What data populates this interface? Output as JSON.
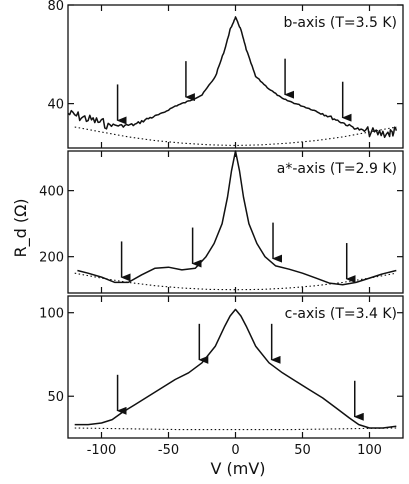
{
  "figure": {
    "ylabel": "R_d (Ω)",
    "xlabel": "V (mV)"
  },
  "chart_data": [
    {
      "type": "line",
      "annotation": "b-axis (T=3.5 K)",
      "xlim": [
        -125,
        125
      ],
      "ylim": [
        22,
        80
      ],
      "yticks": [
        40,
        80
      ],
      "noisy_edges": true,
      "series": [
        {
          "style": "solid",
          "x": [
            -125,
            -115,
            -105,
            -95,
            -85,
            -75,
            -65,
            -55,
            -45,
            -35,
            -25,
            -15,
            -8,
            -4,
            0,
            4,
            8,
            15,
            25,
            35,
            45,
            55,
            65,
            75,
            85,
            95,
            105,
            115,
            120
          ],
          "y": [
            36,
            34.5,
            33,
            31.5,
            31,
            31.5,
            34,
            36,
            39,
            41,
            43.5,
            51,
            62,
            70,
            75,
            70,
            62,
            51,
            46,
            42,
            40,
            38,
            36,
            33.5,
            31,
            29,
            28,
            28,
            29
          ]
        },
        {
          "style": "dotted",
          "x": [
            -120,
            -100,
            -80,
            -60,
            -40,
            -20,
            0,
            20,
            40,
            60,
            80,
            100,
            120
          ],
          "y": [
            30.5,
            28.5,
            26.5,
            25,
            24,
            23.3,
            23,
            23.3,
            24,
            25,
            26.5,
            28.5,
            30.5
          ]
        }
      ],
      "arrows_x": [
        -88,
        -37,
        37,
        80
      ]
    },
    {
      "type": "line",
      "annotation": "a*-axis (T=2.9 K)",
      "xlim": [
        -125,
        125
      ],
      "ylim": [
        90,
        520
      ],
      "yticks": [
        200,
        400
      ],
      "series": [
        {
          "style": "solid",
          "x": [
            -118,
            -110,
            -100,
            -90,
            -80,
            -70,
            -60,
            -50,
            -40,
            -30,
            -22,
            -16,
            -10,
            -6,
            -3,
            0,
            3,
            6,
            10,
            16,
            22,
            30,
            40,
            50,
            60,
            70,
            80,
            90,
            100,
            110,
            120
          ],
          "y": [
            158,
            150,
            138,
            122,
            122,
            145,
            165,
            168,
            160,
            165,
            200,
            240,
            300,
            380,
            460,
            520,
            460,
            380,
            300,
            240,
            200,
            172,
            162,
            150,
            135,
            120,
            115,
            122,
            135,
            148,
            158
          ]
        },
        {
          "style": "dotted",
          "x": [
            -120,
            -100,
            -80,
            -60,
            -40,
            -20,
            0,
            20,
            40,
            60,
            80,
            100,
            120
          ],
          "y": [
            150,
            135,
            122,
            112,
            105,
            101,
            100,
            101,
            105,
            112,
            122,
            135,
            150
          ]
        }
      ],
      "arrows_x": [
        -85,
        -32,
        28,
        83
      ]
    },
    {
      "type": "line",
      "annotation": "c-axis (T=3.4 K)",
      "xlim": [
        -125,
        125
      ],
      "ylim": [
        25,
        110
      ],
      "yticks": [
        50,
        100
      ],
      "series": [
        {
          "style": "solid",
          "x": [
            -120,
            -110,
            -100,
            -92,
            -85,
            -75,
            -65,
            -55,
            -45,
            -35,
            -25,
            -15,
            -8,
            -4,
            0,
            4,
            8,
            15,
            25,
            35,
            45,
            55,
            65,
            75,
            85,
            92,
            100,
            110,
            120
          ],
          "y": [
            33,
            33,
            34,
            36,
            40,
            45,
            50,
            55,
            60,
            64,
            70,
            80,
            92,
            98,
            102,
            98,
            92,
            80,
            70,
            64,
            59,
            54,
            49,
            43,
            37,
            33,
            31,
            31,
            32
          ]
        },
        {
          "style": "dotted",
          "x": [
            -120,
            -80,
            -40,
            0,
            40,
            80,
            120
          ],
          "y": [
            31,
            30.5,
            30,
            30,
            30,
            30.5,
            31
          ]
        }
      ],
      "arrows_x": [
        -88,
        -27,
        27,
        89
      ]
    }
  ],
  "xaxis": {
    "ticks": [
      -100,
      -50,
      0,
      50,
      100
    ]
  }
}
